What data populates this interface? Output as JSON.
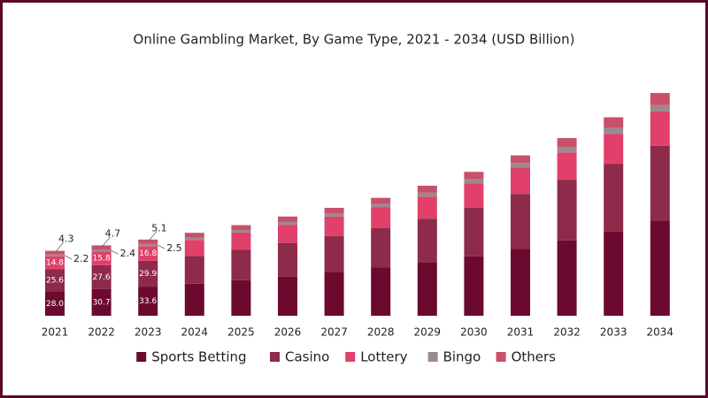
{
  "chart_data": {
    "type": "stacked-bar",
    "title": "Online Gambling Market, By Game Type, 2021 - 2034 (USD Billion)",
    "categories": [
      "2021",
      "2022",
      "2023",
      "2024",
      "2025",
      "2026",
      "2027",
      "2028",
      "2029",
      "2030",
      "2031",
      "2032",
      "2033",
      "2034"
    ],
    "series": [
      {
        "name": "Sports Betting",
        "color": "#6b0a2e",
        "values": [
          28.0,
          30.7,
          33.6,
          37,
          41,
          45,
          50,
          56,
          62,
          68.5,
          77,
          87,
          97,
          110
        ],
        "value_labels": [
          "28.0",
          "30.7",
          "33.6",
          null,
          null,
          null,
          null,
          null,
          null,
          null,
          null,
          null,
          null,
          null
        ]
      },
      {
        "name": "Casino",
        "color": "#8e2a4a",
        "values": [
          25.6,
          27.6,
          29.9,
          32,
          35,
          39,
          42,
          45,
          50,
          56,
          63.5,
          70,
          78,
          86
        ],
        "value_labels": [
          "25.6",
          "27.6",
          "29.9",
          null,
          null,
          null,
          null,
          null,
          null,
          null,
          null,
          null,
          null,
          null
        ]
      },
      {
        "name": "Lottery",
        "color": "#e0406a",
        "values": [
          14.8,
          15.8,
          16.8,
          18.5,
          20,
          21,
          22.5,
          24,
          25.5,
          28,
          30.5,
          31.5,
          35,
          40
        ],
        "value_labels": [
          "14.8",
          "15.8",
          "16.8",
          null,
          null,
          null,
          null,
          null,
          null,
          null,
          null,
          null,
          null,
          null
        ]
      },
      {
        "name": "Bingo",
        "color": "#9a8a90",
        "values": [
          2.2,
          2.4,
          2.5,
          2.7,
          3,
          3.2,
          3.5,
          4,
          4.5,
          5,
          5.3,
          6,
          6.5,
          7
        ],
        "value_labels": [
          "2.2",
          "2.4",
          "2.5",
          null,
          null,
          null,
          null,
          null,
          null,
          null,
          null,
          null,
          null,
          null
        ]
      },
      {
        "name": "Others",
        "color": "#c9506a",
        "values": [
          4.3,
          4.7,
          5.1,
          5.5,
          5.5,
          6.3,
          6.5,
          7,
          8,
          8.5,
          8.7,
          10.5,
          12.5,
          14
        ],
        "value_labels": [
          "4.3",
          "4.7",
          "5.1",
          null,
          null,
          null,
          null,
          null,
          null,
          null,
          null,
          null,
          null,
          null
        ]
      }
    ]
  }
}
